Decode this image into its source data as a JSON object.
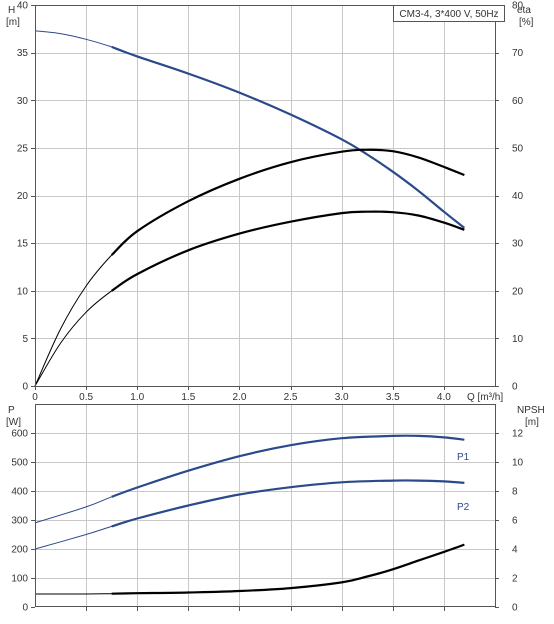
{
  "chart_data": [
    {
      "type": "line",
      "title": "CM3-4, 3*400 V, 50Hz",
      "xlabel": "Q [m³/h]",
      "ylabel_left": [
        "H",
        "[m]"
      ],
      "ylabel_right": [
        "eta",
        "[%]"
      ],
      "xlim": [
        0,
        4.5
      ],
      "ylim_left": [
        0,
        40
      ],
      "ylim_right": [
        0,
        80
      ],
      "x_ticks": [
        "0",
        "0.5",
        "1.0",
        "1.5",
        "2.0",
        "2.5",
        "3.0",
        "3.5",
        "4.0"
      ],
      "y_ticks_left": [
        "0",
        "5",
        "10",
        "15",
        "20",
        "25",
        "30",
        "35",
        "40"
      ],
      "y_ticks_right": [
        "0",
        "10",
        "20",
        "30",
        "40",
        "50",
        "60",
        "70",
        "80"
      ],
      "grid": true,
      "series": [
        {
          "axis": "left",
          "color": "#2b4a8b",
          "x": [
            0,
            0.25,
            0.5,
            0.75,
            1.0,
            1.5,
            2.0,
            2.5,
            3.0,
            3.25,
            3.5,
            3.75,
            4.0,
            4.2
          ],
          "y": [
            37.3,
            37.0,
            36.4,
            35.6,
            34.6,
            32.8,
            30.8,
            28.5,
            25.9,
            24.3,
            22.5,
            20.5,
            18.3,
            16.6
          ]
        },
        {
          "axis": "right",
          "color": "#000000",
          "x": [
            0,
            0.25,
            0.5,
            0.75,
            1.0,
            1.5,
            2.0,
            2.5,
            3.0,
            3.25,
            3.5,
            3.75,
            4.0,
            4.2
          ],
          "y": [
            0,
            12,
            21,
            27.5,
            32.5,
            38.8,
            43.5,
            47,
            49.2,
            49.6,
            49.3,
            48,
            46,
            44.3
          ]
        },
        {
          "axis": "right",
          "color": "#000000",
          "x": [
            0,
            0.25,
            0.5,
            0.75,
            1.0,
            1.5,
            2.0,
            2.5,
            3.0,
            3.25,
            3.5,
            3.75,
            4.0,
            4.2
          ],
          "y": [
            0,
            9,
            15.5,
            20,
            23.5,
            28.5,
            32,
            34.5,
            36.3,
            36.6,
            36.5,
            35.8,
            34.3,
            32.8
          ]
        }
      ]
    },
    {
      "type": "line",
      "xlabel": "",
      "ylabel_left": [
        "P",
        "[W]"
      ],
      "ylabel_right": [
        "NPSH",
        "[m]"
      ],
      "xlim": [
        0,
        4.5
      ],
      "ylim_left": [
        0,
        700
      ],
      "ylim_right": [
        0,
        14
      ],
      "y_ticks_left": [
        "0",
        "100",
        "200",
        "300",
        "400",
        "500",
        "600"
      ],
      "y_ticks_right": [
        "0",
        "2",
        "4",
        "6",
        "8",
        "10",
        "12"
      ],
      "grid": true,
      "series": [
        {
          "name": "P1",
          "axis": "left",
          "color": "#2b4a8b",
          "x": [
            0,
            0.5,
            0.75,
            1.0,
            1.5,
            2.0,
            2.5,
            3.0,
            3.5,
            3.75,
            4.0,
            4.2
          ],
          "y": [
            290,
            345,
            380,
            412,
            470,
            520,
            558,
            582,
            590,
            590,
            585,
            577
          ]
        },
        {
          "name": "P2",
          "axis": "left",
          "color": "#2b4a8b",
          "x": [
            0,
            0.5,
            0.75,
            1.0,
            1.5,
            2.0,
            2.5,
            3.0,
            3.5,
            3.75,
            4.0,
            4.2
          ],
          "y": [
            200,
            250,
            278,
            305,
            350,
            388,
            413,
            430,
            436,
            436,
            433,
            428
          ]
        },
        {
          "axis": "right",
          "color": "#000000",
          "x": [
            0,
            0.5,
            0.75,
            1.0,
            1.5,
            2.0,
            2.5,
            3.0,
            3.25,
            3.5,
            3.75,
            4.0,
            4.2
          ],
          "y": [
            0.9,
            0.9,
            0.92,
            0.95,
            1.0,
            1.1,
            1.3,
            1.7,
            2.1,
            2.6,
            3.2,
            3.8,
            4.3
          ]
        }
      ]
    }
  ]
}
